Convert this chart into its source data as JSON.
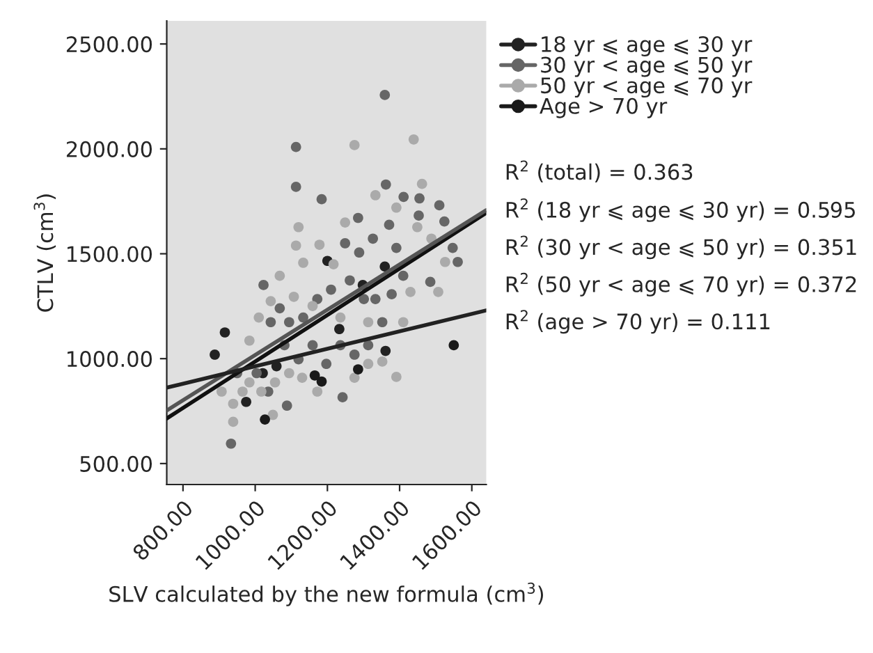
{
  "chart_data": {
    "type": "scatter",
    "xlabel": "SLV calculated by the new formula (cm$^{3}$)",
    "ylabel": "CTLV (cm$^{3}$)",
    "xlim": [
      755,
      1640
    ],
    "ylim": [
      400,
      2610
    ],
    "xticks": [
      {
        "value": 800,
        "label": "800.00"
      },
      {
        "value": 1000,
        "label": "1000.00"
      },
      {
        "value": 1200,
        "label": "1200.00"
      },
      {
        "value": 1400,
        "label": "1400.00"
      },
      {
        "value": 1600,
        "label": "1600.00"
      }
    ],
    "yticks": [
      {
        "value": 500,
        "label": "500.00"
      },
      {
        "value": 1000,
        "label": "1000.00"
      },
      {
        "value": 1500,
        "label": "1500.00"
      },
      {
        "value": 2000,
        "label": "2000.00"
      },
      {
        "value": 2500,
        "label": "2500.00"
      }
    ],
    "grid": false,
    "legend": "top right",
    "marker": "circle",
    "series": [
      {
        "name": "18 yr ⩽ age ⩽ 30 yr",
        "color": "#222222",
        "x": [
          1200,
          1298,
          1359,
          1233,
          1361,
          1059,
          1021,
          975,
          916,
          888
        ],
        "values": [
          1466,
          1351,
          1439,
          1141,
          1037,
          964,
          931,
          794,
          1125,
          1019
        ]
      },
      {
        "name": "30 yr < age ⩽ 50 yr",
        "color": "#666666",
        "x": [
          1113,
          1113,
          1359,
          1184,
          1362,
          1411,
          1455,
          1510,
          1524,
          1547,
          1561,
          1485,
          1453,
          1285,
          1249,
          1288,
          1326,
          1371,
          1391,
          1410,
          1378,
          1333,
          1301,
          1262,
          1210,
          1172,
          1133,
          1094,
          1068,
          1023,
          1043,
          1081,
          1120,
          1159,
          1197,
          1236,
          1275,
          1313,
          1352,
          1036,
          1088,
          1242,
          1004,
          950,
          933
        ],
        "values": [
          2009,
          1819,
          2257,
          1760,
          1830,
          1771,
          1764,
          1731,
          1654,
          1528,
          1461,
          1366,
          1682,
          1671,
          1550,
          1506,
          1572,
          1638,
          1528,
          1395,
          1307,
          1284,
          1284,
          1373,
          1329,
          1284,
          1196,
          1174,
          1240,
          1351,
          1174,
          1064,
          997,
          1064,
          975,
          1064,
          1019,
          1064,
          1174,
          843,
          776,
          816,
          931,
          931,
          595
        ]
      },
      {
        "name": "50 yr < age ⩽ 70 yr",
        "color": "#aaaaaa",
        "x": [
          1275,
          1439,
          1462,
          1333,
          1391,
          1120,
          1113,
          1178,
          1133,
          1249,
          1449,
          1488,
          1526,
          1430,
          1507,
          1410,
          1391,
          1352,
          1313,
          1275,
          1130,
          1094,
          1055,
          1017,
          984,
          965,
          939,
          939,
          907,
          1049,
          1172,
          1010,
          1068,
          1043,
          1236,
          1313,
          1217,
          1159,
          1107,
          984
        ],
        "values": [
          2018,
          2045,
          1833,
          1779,
          1720,
          1627,
          1539,
          1543,
          1457,
          1649,
          1627,
          1572,
          1461,
          1318,
          1318,
          1174,
          913,
          986,
          975,
          909,
          909,
          931,
          887,
          843,
          887,
          843,
          785,
          699,
          843,
          732,
          843,
          1196,
          1395,
          1274,
          1196,
          1174,
          1450,
          1251,
          1295,
          1086
        ]
      },
      {
        "name": "Age > 70 yr",
        "color": "#1a1a1a",
        "x": [
          1027,
          1165,
          1184,
          1285,
          1550
        ],
        "values": [
          710,
          920,
          891,
          949,
          1064
        ]
      },
      {
        "type": "line",
        "color": "#111111",
        "marker": "none",
        "x": [
          755,
          1640
        ],
        "values": [
          715,
          1695
        ]
      },
      {
        "type": "line",
        "color": "#555555",
        "marker": "none",
        "x": [
          755,
          1640
        ],
        "values": [
          753,
          1708
        ]
      },
      {
        "type": "line",
        "color": "#222222",
        "marker": "none",
        "x": [
          755,
          1640
        ],
        "values": [
          862,
          1230
        ]
      }
    ],
    "annotations": [
      "R$^{2}$ (total) = 0.363",
      "R$^{2}$ (18 yr ⩽ age ⩽ 30 yr) = 0.595",
      "R$^{2}$ (30 yr < age ⩽ 50 yr) = 0.351",
      "R$^{2}$ (50 yr < age ⩽ 70 yr) = 0.372",
      "R$^{2}$ (age > 70 yr) = 0.111"
    ]
  }
}
